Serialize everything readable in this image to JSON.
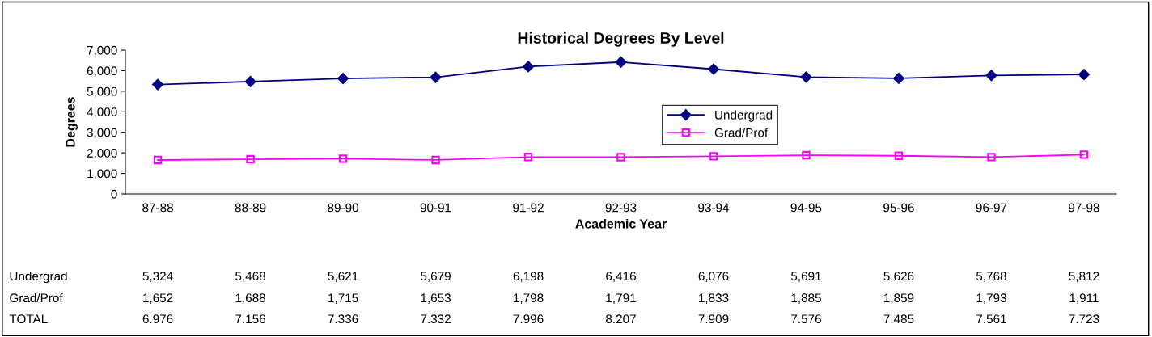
{
  "chart_data": {
    "type": "line",
    "title": "Historical Degrees By Level",
    "xlabel": "Academic Year",
    "ylabel": "Degrees",
    "categories": [
      "87-88",
      "88-89",
      "89-90",
      "90-91",
      "91-92",
      "92-93",
      "93-94",
      "94-95",
      "95-96",
      "96-97",
      "97-98"
    ],
    "series": [
      {
        "name": "Undergrad",
        "color": "#000080",
        "marker": "diamond",
        "values": [
          5324,
          5468,
          5621,
          5679,
          6198,
          6416,
          6076,
          5691,
          5626,
          5768,
          5812
        ],
        "value_labels": [
          "5,324",
          "5,468",
          "5,621",
          "5,679",
          "6,198",
          "6,416",
          "6,076",
          "5,691",
          "5,626",
          "5,768",
          "5,812"
        ]
      },
      {
        "name": "Grad/Prof",
        "color": "#ff00ff",
        "marker": "square",
        "values": [
          1652,
          1688,
          1715,
          1653,
          1798,
          1791,
          1833,
          1885,
          1859,
          1793,
          1911
        ],
        "value_labels": [
          "1,652",
          "1,688",
          "1,715",
          "1,653",
          "1,798",
          "1,791",
          "1,833",
          "1,885",
          "1,859",
          "1,793",
          "1,911"
        ]
      }
    ],
    "ylim": [
      0,
      7000
    ],
    "yticks": [
      {
        "value": 0,
        "label": "0"
      },
      {
        "value": 1000,
        "label": "1,000"
      },
      {
        "value": 2000,
        "label": "2,000"
      },
      {
        "value": 3000,
        "label": "3,000"
      },
      {
        "value": 4000,
        "label": "4,000"
      },
      {
        "value": 5000,
        "label": "5,000"
      },
      {
        "value": 6000,
        "label": "6,000"
      },
      {
        "value": 7000,
        "label": "7,000"
      }
    ],
    "totals": [
      "6.976",
      "7.156",
      "7.336",
      "7.332",
      "7.996",
      "8.207",
      "7.909",
      "7.576",
      "7.485",
      "7.561",
      "7.723"
    ],
    "annotations": [
      "TOTAL"
    ],
    "grid": false,
    "legend": "center",
    "line_style": "solid"
  }
}
